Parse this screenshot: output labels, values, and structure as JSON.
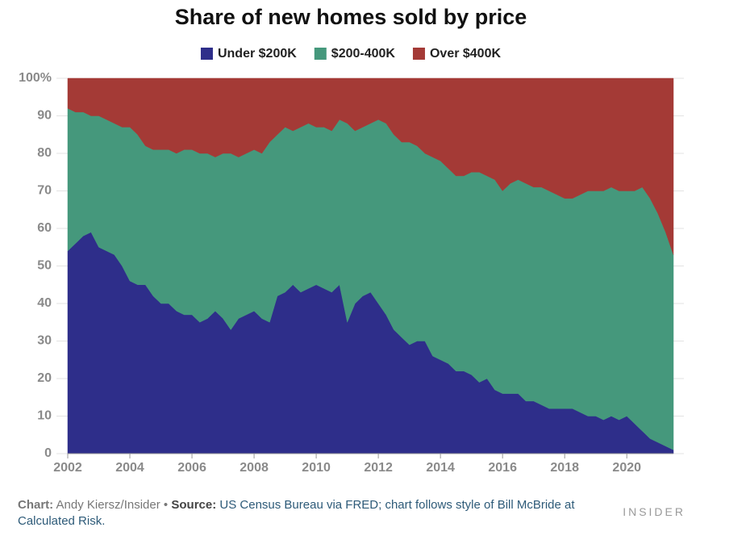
{
  "chart_data": {
    "type": "stacked-area",
    "title": "Share of new homes sold by price",
    "x": [
      2002,
      2002.25,
      2002.5,
      2002.75,
      2003,
      2003.25,
      2003.5,
      2003.75,
      2004,
      2004.25,
      2004.5,
      2004.75,
      2005,
      2005.25,
      2005.5,
      2005.75,
      2006,
      2006.25,
      2006.5,
      2006.75,
      2007,
      2007.25,
      2007.5,
      2007.75,
      2008,
      2008.25,
      2008.5,
      2008.75,
      2009,
      2009.25,
      2009.5,
      2009.75,
      2010,
      2010.25,
      2010.5,
      2010.75,
      2011,
      2011.25,
      2011.5,
      2011.75,
      2012,
      2012.25,
      2012.5,
      2012.75,
      2013,
      2013.25,
      2013.5,
      2013.75,
      2014,
      2014.25,
      2014.5,
      2014.75,
      2015,
      2015.25,
      2015.5,
      2015.75,
      2016,
      2016.25,
      2016.5,
      2016.75,
      2017,
      2017.25,
      2017.5,
      2017.75,
      2018,
      2018.25,
      2018.5,
      2018.75,
      2019,
      2019.25,
      2019.5,
      2019.75,
      2020,
      2020.25,
      2020.5,
      2020.75,
      2021,
      2021.25,
      2021.5
    ],
    "series": [
      {
        "name": "Under $200K",
        "color": "#2e2e8a",
        "values": [
          54,
          56,
          58,
          59,
          55,
          54,
          53,
          50,
          46,
          45,
          45,
          42,
          40,
          40,
          38,
          37,
          37,
          35,
          36,
          38,
          36,
          33,
          36,
          37,
          38,
          36,
          35,
          42,
          43,
          45,
          43,
          44,
          45,
          44,
          43,
          45,
          35,
          40,
          42,
          43,
          40,
          37,
          33,
          31,
          29,
          30,
          30,
          26,
          25,
          24,
          22,
          22,
          21,
          19,
          20,
          17,
          16,
          16,
          16,
          14,
          14,
          13,
          12,
          12,
          12,
          12,
          11,
          10,
          10,
          9,
          10,
          9,
          10,
          8,
          6,
          4,
          3,
          2,
          1
        ]
      },
      {
        "name": "$200-400K",
        "color": "#45987c",
        "values": [
          38,
          35,
          33,
          31,
          35,
          35,
          35,
          37,
          41,
          40,
          37,
          39,
          41,
          41,
          42,
          44,
          44,
          45,
          44,
          41,
          44,
          47,
          43,
          43,
          43,
          44,
          48,
          43,
          44,
          41,
          44,
          44,
          42,
          43,
          43,
          44,
          53,
          46,
          45,
          45,
          49,
          51,
          52,
          52,
          54,
          52,
          50,
          53,
          53,
          52,
          52,
          52,
          54,
          56,
          54,
          56,
          54,
          56,
          57,
          58,
          57,
          58,
          58,
          57,
          56,
          56,
          58,
          60,
          60,
          61,
          61,
          61,
          60,
          62,
          65,
          64,
          61,
          57,
          52
        ]
      },
      {
        "name": "Over $400K",
        "color": "#a43a36",
        "values": [
          8,
          9,
          9,
          10,
          10,
          11,
          12,
          13,
          13,
          15,
          18,
          19,
          19,
          19,
          20,
          19,
          19,
          20,
          20,
          21,
          20,
          20,
          21,
          20,
          19,
          20,
          17,
          15,
          13,
          14,
          13,
          12,
          13,
          13,
          14,
          11,
          12,
          14,
          13,
          12,
          11,
          12,
          15,
          17,
          17,
          18,
          20,
          21,
          22,
          24,
          26,
          26,
          25,
          25,
          26,
          27,
          30,
          28,
          27,
          28,
          29,
          29,
          30,
          31,
          32,
          32,
          31,
          30,
          30,
          30,
          29,
          30,
          30,
          30,
          29,
          32,
          36,
          41,
          47
        ]
      }
    ],
    "xlim": [
      2002,
      2021.5
    ],
    "xticks": [
      2002,
      2004,
      2006,
      2008,
      2010,
      2012,
      2014,
      2016,
      2018,
      2020
    ],
    "ylim": [
      0,
      100
    ],
    "yticks": [
      0,
      10,
      20,
      30,
      40,
      50,
      60,
      70,
      80,
      90,
      {
        "value": 100,
        "label": "100%"
      }
    ],
    "grid": true,
    "legend": "top"
  },
  "credit": {
    "chart_label": "Chart:",
    "chart_author": "Andy Kiersz/Insider",
    "separator": "•",
    "source_label": "Source:",
    "source": "US Census Bureau via FRED; chart follows style of Bill McBride at Calculated Risk."
  },
  "brand": "INSIDER"
}
